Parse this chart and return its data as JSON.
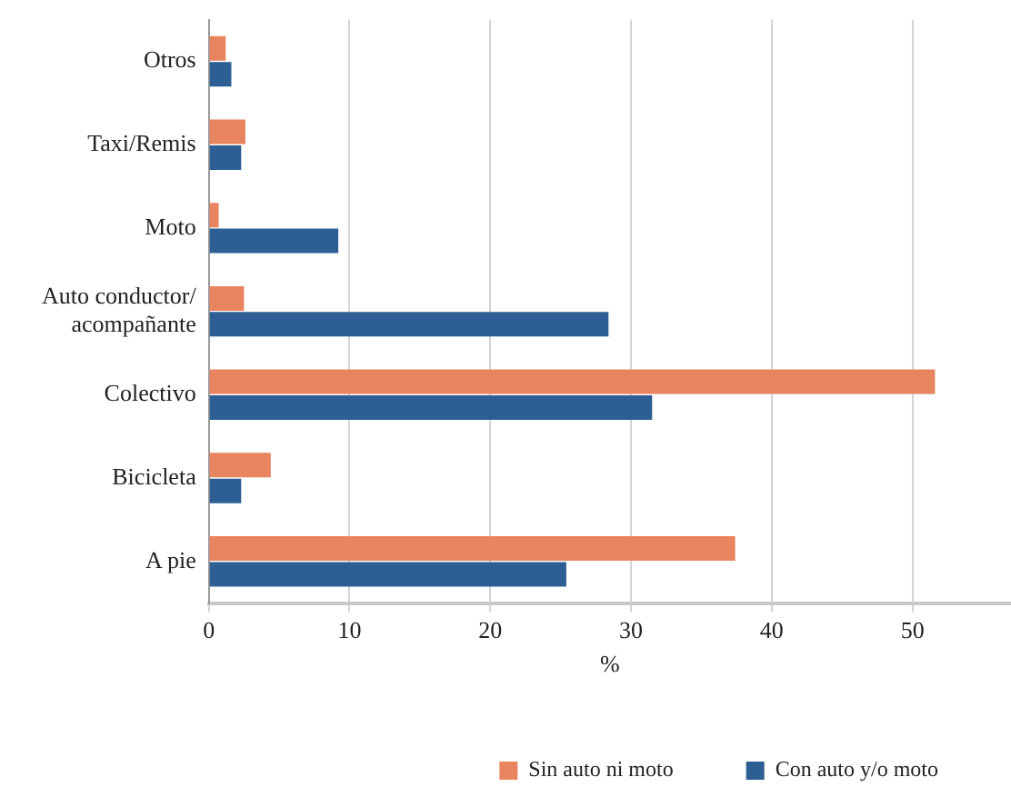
{
  "chart_data": {
    "type": "bar",
    "orientation": "horizontal",
    "xlabel": "%",
    "categories": [
      "Otros",
      "Taxi/Remis",
      "Moto",
      "Auto conductor/ acompañante",
      "Colectivo",
      "Bicicleta",
      "A pie"
    ],
    "series": [
      {
        "name": "Sin auto ni moto",
        "color": "#e8845e",
        "values": [
          1.2,
          2.6,
          0.7,
          2.5,
          51.6,
          4.4,
          37.4
        ]
      },
      {
        "name": "Con auto y/o moto",
        "color": "#2e5f94",
        "values": [
          1.6,
          2.3,
          9.2,
          28.4,
          31.5,
          2.3,
          25.4
        ]
      }
    ],
    "xlim": [
      0,
      57
    ],
    "xticks": [
      0,
      10,
      20,
      30,
      40,
      50
    ],
    "grid": "x",
    "legend": "bottom"
  }
}
